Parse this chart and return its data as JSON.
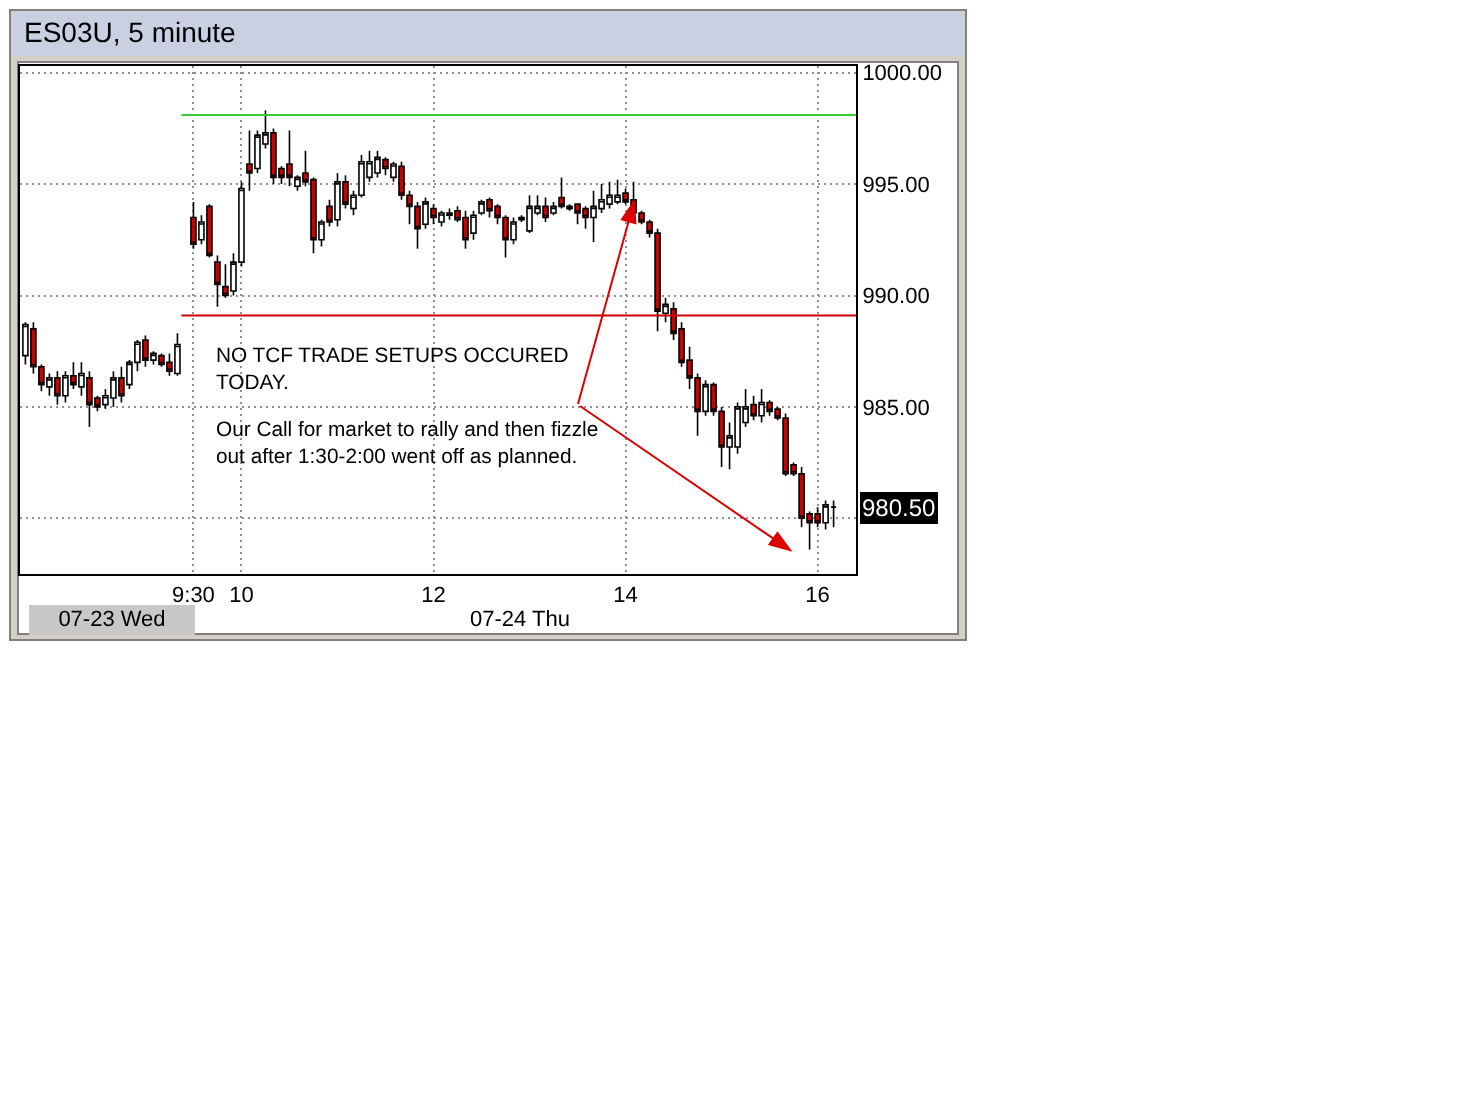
{
  "chart_data": {
    "type": "candlestick",
    "title": "ES03U, 5 minute",
    "categories": [
      null,
      null,
      null,
      null,
      null,
      null,
      null,
      null,
      null,
      null,
      null,
      null,
      null,
      null,
      null,
      null,
      null,
      null,
      null,
      null,
      null,
      "9:30",
      null,
      null,
      null,
      null,
      null,
      "10",
      null,
      null,
      null,
      null,
      null,
      null,
      null,
      null,
      null,
      null,
      null,
      null,
      null,
      null,
      null,
      null,
      null,
      null,
      null,
      null,
      null,
      null,
      null,
      "12",
      null,
      null,
      null,
      null,
      null,
      null,
      null,
      null,
      null,
      null,
      null,
      null,
      null,
      null,
      null,
      null,
      null,
      null,
      null,
      null,
      null,
      null,
      null,
      "14",
      null,
      null,
      null,
      null,
      null,
      null,
      null,
      null,
      null,
      null,
      null,
      null,
      null,
      null,
      null,
      null,
      null,
      null,
      null,
      null,
      null,
      null,
      null,
      "16",
      null,
      null
    ],
    "ohlc": [
      [
        987.3,
        988.8,
        986.9,
        988.7
      ],
      [
        988.5,
        988.8,
        986.5,
        986.8
      ],
      [
        986.8,
        986.9,
        985.7,
        986.0
      ],
      [
        985.9,
        986.5,
        985.5,
        986.3
      ],
      [
        986.3,
        986.6,
        985.1,
        985.5
      ],
      [
        985.5,
        986.6,
        985.2,
        986.4
      ],
      [
        986.4,
        987.0,
        985.8,
        986.0
      ],
      [
        985.9,
        987.0,
        985.5,
        986.5
      ],
      [
        986.3,
        986.6,
        984.1,
        985.1
      ],
      [
        985.4,
        985.5,
        984.8,
        985.0
      ],
      [
        985.1,
        985.8,
        984.9,
        985.5
      ],
      [
        985.4,
        986.6,
        985.0,
        986.3
      ],
      [
        986.3,
        986.8,
        985.2,
        985.5
      ],
      [
        986.0,
        987.1,
        985.8,
        987.0
      ],
      [
        987.0,
        988.0,
        986.6,
        987.9
      ],
      [
        988.0,
        988.2,
        986.8,
        987.1
      ],
      [
        987.1,
        987.5,
        986.9,
        987.4
      ],
      [
        987.3,
        987.4,
        986.8,
        986.9
      ],
      [
        987.0,
        987.4,
        986.4,
        986.6
      ],
      [
        986.5,
        988.3,
        986.4,
        987.8
      ],
      null,
      [
        993.5,
        994.2,
        992.1,
        992.3
      ],
      [
        992.5,
        993.6,
        992.3,
        993.3
      ],
      [
        994.0,
        994.1,
        991.7,
        991.8
      ],
      [
        991.5,
        991.8,
        989.5,
        990.5
      ],
      [
        990.4,
        991.4,
        989.9,
        990.0
      ],
      [
        990.2,
        991.9,
        990.0,
        991.5
      ],
      [
        991.5,
        995.1,
        991.3,
        994.8
      ],
      [
        995.9,
        997.4,
        994.7,
        995.5
      ],
      [
        995.7,
        997.4,
        995.5,
        997.2
      ],
      [
        996.8,
        998.3,
        996.6,
        997.3
      ],
      [
        997.3,
        997.5,
        995.0,
        995.3
      ],
      [
        995.7,
        995.8,
        995.0,
        995.3
      ],
      [
        995.9,
        997.4,
        994.9,
        995.3
      ],
      [
        994.9,
        995.4,
        994.7,
        995.3
      ],
      [
        995.5,
        996.5,
        994.9,
        995.1
      ],
      [
        995.2,
        995.3,
        991.9,
        992.5
      ],
      [
        992.5,
        993.4,
        992.2,
        993.3
      ],
      [
        994.0,
        994.3,
        993.1,
        993.3
      ],
      [
        993.4,
        995.5,
        993.1,
        995.1
      ],
      [
        995.1,
        995.4,
        993.9,
        994.1
      ],
      [
        993.9,
        994.7,
        993.6,
        994.5
      ],
      [
        994.5,
        996.3,
        994.4,
        996.0
      ],
      [
        995.3,
        996.5,
        995.1,
        996.0
      ],
      [
        995.5,
        996.5,
        995.3,
        996.2
      ],
      [
        996.1,
        996.2,
        995.4,
        995.7
      ],
      [
        995.3,
        996.0,
        995.1,
        995.9
      ],
      [
        995.8,
        996.0,
        994.3,
        994.5
      ],
      [
        994.5,
        994.7,
        993.2,
        994.0
      ],
      [
        994.0,
        994.2,
        992.1,
        993.0
      ],
      [
        993.2,
        994.4,
        993.0,
        994.2
      ],
      [
        993.9,
        994.1,
        993.2,
        993.5
      ],
      [
        993.3,
        993.8,
        993.1,
        993.7
      ],
      [
        993.6,
        993.9,
        993.4,
        993.7
      ],
      [
        993.8,
        994.0,
        993.3,
        993.4
      ],
      [
        993.5,
        993.8,
        992.1,
        992.5
      ],
      [
        992.8,
        993.8,
        992.5,
        993.6
      ],
      [
        993.7,
        994.3,
        993.6,
        994.2
      ],
      [
        994.3,
        994.4,
        993.5,
        993.8
      ],
      [
        994.0,
        994.1,
        993.2,
        993.5
      ],
      [
        993.5,
        993.6,
        991.7,
        992.5
      ],
      [
        992.5,
        993.5,
        992.3,
        993.3
      ],
      [
        993.4,
        993.6,
        993.3,
        993.5
      ],
      [
        992.9,
        994.5,
        992.8,
        994.0
      ],
      [
        993.7,
        994.5,
        993.6,
        994.0
      ],
      [
        994.0,
        994.4,
        993.3,
        993.5
      ],
      [
        993.7,
        994.2,
        993.6,
        994.0
      ],
      [
        994.4,
        995.3,
        993.9,
        994.0
      ],
      [
        993.9,
        994.1,
        993.8,
        994.0
      ],
      [
        994.1,
        994.1,
        993.2,
        993.7
      ],
      [
        993.9,
        994.0,
        993.0,
        993.5
      ],
      [
        993.5,
        994.7,
        992.4,
        994.0
      ],
      [
        993.9,
        995.0,
        993.7,
        994.3
      ],
      [
        994.1,
        995.1,
        993.9,
        994.5
      ],
      [
        994.2,
        995.2,
        994.1,
        994.5
      ],
      [
        994.6,
        994.8,
        994.1,
        994.2
      ],
      [
        994.3,
        995.1,
        993.6,
        993.7
      ],
      [
        993.7,
        993.8,
        993.2,
        993.3
      ],
      [
        993.3,
        993.4,
        992.6,
        992.8
      ],
      [
        992.8,
        993.0,
        988.4,
        989.3
      ],
      [
        989.2,
        989.9,
        988.8,
        989.6
      ],
      [
        989.4,
        989.7,
        988.0,
        988.3
      ],
      [
        988.5,
        988.8,
        986.8,
        987.0
      ],
      [
        987.1,
        987.7,
        985.8,
        986.3
      ],
      [
        986.3,
        986.5,
        983.7,
        984.8
      ],
      [
        984.8,
        986.2,
        984.6,
        986.0
      ],
      [
        986.0,
        986.1,
        984.6,
        984.8
      ],
      [
        984.8,
        985.0,
        982.3,
        983.2
      ],
      [
        983.2,
        984.3,
        982.2,
        983.7
      ],
      [
        983.2,
        985.2,
        982.9,
        985.0
      ],
      [
        984.3,
        985.8,
        984.1,
        985.0
      ],
      [
        985.1,
        985.5,
        984.4,
        984.6
      ],
      [
        984.6,
        985.8,
        984.3,
        985.2
      ],
      [
        985.2,
        985.3,
        984.6,
        984.8
      ],
      [
        984.9,
        985.0,
        984.4,
        984.5
      ],
      [
        984.5,
        984.7,
        981.9,
        982.0
      ],
      [
        982.4,
        982.5,
        981.9,
        982.0
      ],
      [
        982.0,
        982.3,
        979.6,
        980.0
      ],
      [
        980.2,
        980.3,
        978.6,
        979.8
      ],
      [
        980.2,
        980.5,
        979.6,
        979.8
      ],
      [
        979.8,
        980.8,
        979.5,
        980.6
      ],
      [
        980.5,
        980.8,
        979.6,
        980.5
      ]
    ],
    "colors": [
      "#ffffff",
      "#cc0000",
      "#cc0000",
      "#ffffff",
      "#cc0000",
      "#ffffff",
      "#cc0000",
      "#ffffff",
      "#cc0000",
      "#cc0000",
      "#ffffff",
      "#ffffff",
      "#cc0000",
      "#ffffff",
      "#ffffff",
      "#cc0000",
      "#ffffff",
      "#cc0000",
      "#cc0000",
      "#ffffff",
      null,
      "#cc0000",
      "#ffffff",
      "#cc0000",
      "#cc0000",
      "#cc0000",
      "#ffffff",
      "#ffffff",
      "#cc0000",
      "#ffffff",
      "#ffffff",
      "#cc0000",
      "#cc0000",
      "#cc0000",
      "#ffffff",
      "#cc0000",
      "#cc0000",
      "#ffffff",
      "#cc0000",
      "#ffffff",
      "#cc0000",
      "#ffffff",
      "#ffffff",
      "#ffffff",
      "#ffffff",
      "#cc0000",
      "#ffffff",
      "#cc0000",
      "#cc0000",
      "#cc0000",
      "#ffffff",
      "#cc0000",
      "#ffffff",
      "#000000",
      "#cc0000",
      "#cc0000",
      "#ffffff",
      "#ffffff",
      "#cc0000",
      "#cc0000",
      "#cc0000",
      "#ffffff",
      "#000000",
      "#ffffff",
      "#ffffff",
      "#cc0000",
      "#ffffff",
      "#cc0000",
      "#000000",
      "#cc0000",
      "#cc0000",
      "#ffffff",
      "#ffffff",
      "#ffffff",
      "#ffffff",
      "#cc0000",
      "#cc0000",
      "#cc0000",
      "#cc0000",
      "#cc0000",
      "#ffffff",
      "#cc0000",
      "#cc0000",
      "#cc0000",
      "#cc0000",
      "#ffffff",
      "#cc0000",
      "#cc0000",
      "#ffffff",
      "#ffffff",
      "#ffffff",
      "#cc0000",
      "#ffffff",
      "#cc0000",
      "#cc0000",
      "#cc0000",
      "#cc0000",
      "#cc0000",
      "#cc0000",
      "#cc0000",
      "#ffffff",
      "#000000"
    ],
    "ylim": [
      977.5,
      1000.3
    ],
    "yticks": [
      {
        "value": 980,
        "label": null
      },
      {
        "value": 985,
        "label": "985.00"
      },
      {
        "value": 990,
        "label": "990.00"
      },
      {
        "value": 995,
        "label": "995.00"
      },
      {
        "value": 1000,
        "label": "1000.00"
      }
    ],
    "grid": true,
    "ref_lines": [
      {
        "axis": "y",
        "value": 998.1,
        "color": "#33cc33"
      },
      {
        "axis": "y",
        "value": 989.1,
        "color": "#cc0000"
      }
    ],
    "annotations": [
      "07-23 Wed",
      "07-24 Thu",
      "NO TCF TRADE SETUPS OCCURED\nTODAY.",
      "Our Call for market to rally and then fizzle\nout after 1:30-2:00 went off as planned.",
      {
        "text": "980.50",
        "y": 980.5
      }
    ]
  }
}
